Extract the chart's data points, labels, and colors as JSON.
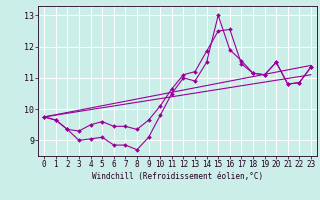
{
  "background_color": "#cceee8",
  "grid_color": "#ffffff",
  "line_color": "#990099",
  "xlabel": "Windchill (Refroidissement éolien,°C)",
  "xlim": [
    -0.5,
    23.5
  ],
  "ylim": [
    8.5,
    13.3
  ],
  "yticks": [
    9,
    10,
    11,
    12,
    13
  ],
  "xticks": [
    0,
    1,
    2,
    3,
    4,
    5,
    6,
    7,
    8,
    9,
    10,
    11,
    12,
    13,
    14,
    15,
    16,
    17,
    18,
    19,
    20,
    21,
    22,
    23
  ],
  "line1_x": [
    0,
    1,
    2,
    3,
    4,
    5,
    6,
    7,
    8,
    9,
    10,
    11,
    12,
    13,
    14,
    15,
    16,
    17,
    18,
    19,
    20,
    21,
    22,
    23
  ],
  "line1_y": [
    9.75,
    9.65,
    9.35,
    9.0,
    9.05,
    9.1,
    8.85,
    8.85,
    8.7,
    9.1,
    9.8,
    10.5,
    11.0,
    10.9,
    11.5,
    13.0,
    11.9,
    11.55,
    11.15,
    11.1,
    11.5,
    10.8,
    10.85,
    11.35
  ],
  "line2_x": [
    0,
    1,
    2,
    3,
    4,
    5,
    6,
    7,
    8,
    9,
    10,
    11,
    12,
    13,
    14,
    15,
    16,
    17,
    18,
    19,
    20,
    21,
    22,
    23
  ],
  "line2_y": [
    9.75,
    9.65,
    9.35,
    9.3,
    9.5,
    9.6,
    9.45,
    9.45,
    9.35,
    9.65,
    10.1,
    10.65,
    11.1,
    11.2,
    11.85,
    12.5,
    12.55,
    11.45,
    11.15,
    11.1,
    11.5,
    10.8,
    10.85,
    11.35
  ],
  "line3_x": [
    0,
    23
  ],
  "line3_y": [
    9.75,
    11.4
  ],
  "line4_x": [
    0,
    23
  ],
  "line4_y": [
    9.75,
    11.1
  ],
  "markersize": 2.0,
  "linewidth": 0.8,
  "tick_fontsize": 5.5,
  "xlabel_fontsize": 5.5
}
